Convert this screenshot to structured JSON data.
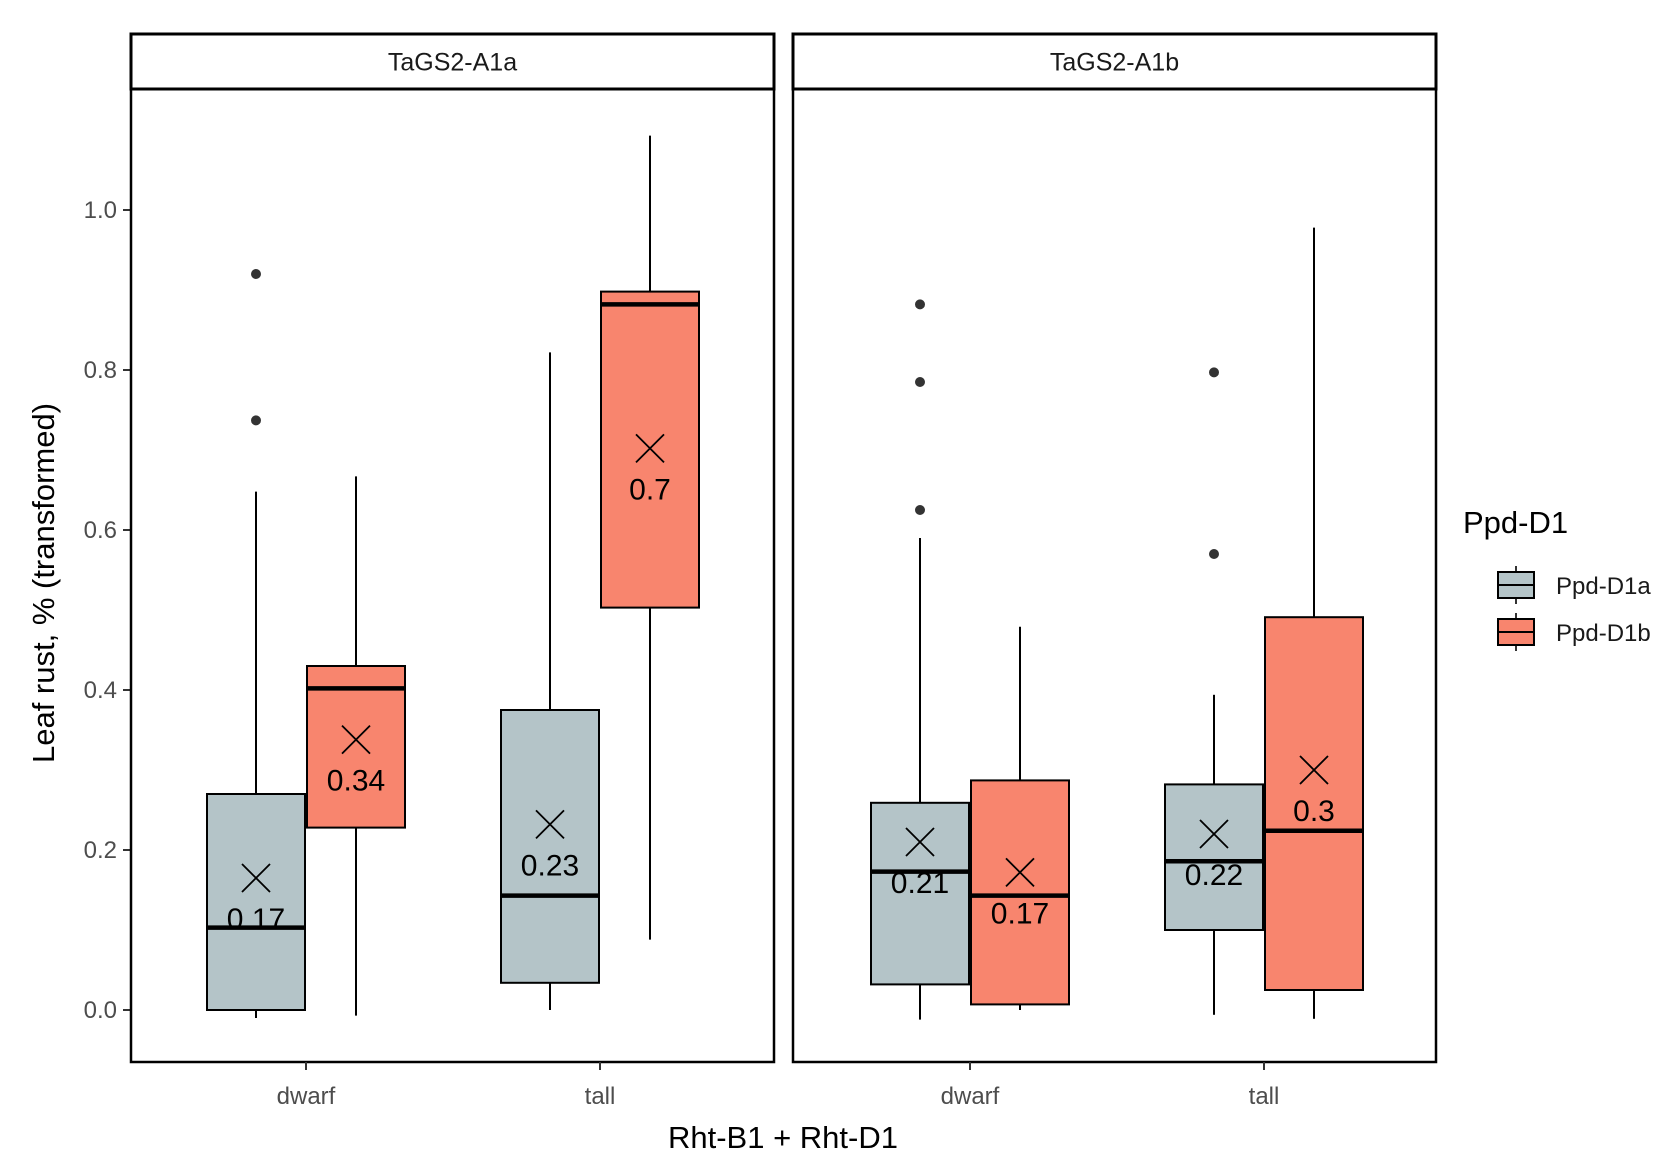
{
  "chart_data": {
    "type": "boxplot",
    "xlabel": "Rht-B1 + Rht-D1",
    "ylabel": "Leaf rust, % (transformed)",
    "ylim": [
      -0.07,
      1.15
    ],
    "yticks": [
      0.0,
      0.2,
      0.4,
      0.6,
      0.8,
      1.0
    ],
    "ytick_labels": [
      "0.0",
      "0.2",
      "0.4",
      "0.6",
      "0.8",
      "1.0"
    ],
    "categories": [
      "dwarf",
      "tall"
    ],
    "legend": {
      "title": "Ppd-D1",
      "position": "right",
      "items": [
        {
          "name": "Ppd-D1a",
          "color": "#b4c4c8"
        },
        {
          "name": "Ppd-D1b",
          "color": "#f8856e"
        }
      ]
    },
    "panels": [
      {
        "title": "TaGS2-A1a",
        "boxes": [
          {
            "category": "dwarf",
            "group": "Ppd-D1a",
            "whisker_low": -0.01,
            "q1": 0.0,
            "median": 0.103,
            "q3": 0.27,
            "whisker_high": 0.648,
            "outliers": [
              0.92,
              0.737
            ],
            "mean": 0.165,
            "mean_label": "0.17"
          },
          {
            "category": "dwarf",
            "group": "Ppd-D1b",
            "whisker_low": -0.007,
            "q1": 0.228,
            "median": 0.402,
            "q3": 0.43,
            "whisker_high": 0.667,
            "outliers": [],
            "mean": 0.338,
            "mean_label": "0.34"
          },
          {
            "category": "tall",
            "group": "Ppd-D1a",
            "whisker_low": 0.0,
            "q1": 0.034,
            "median": 0.143,
            "q3": 0.375,
            "whisker_high": 0.822,
            "outliers": [],
            "mean": 0.232,
            "mean_label": "0.23"
          },
          {
            "category": "tall",
            "group": "Ppd-D1b",
            "whisker_low": 0.088,
            "q1": 0.503,
            "median": 0.882,
            "q3": 0.898,
            "whisker_high": 1.093,
            "outliers": [],
            "mean": 0.702,
            "mean_label": "0.7"
          }
        ]
      },
      {
        "title": "TaGS2-A1b",
        "boxes": [
          {
            "category": "dwarf",
            "group": "Ppd-D1a",
            "whisker_low": -0.012,
            "q1": 0.032,
            "median": 0.173,
            "q3": 0.259,
            "whisker_high": 0.59,
            "outliers": [
              0.882,
              0.785,
              0.625
            ],
            "mean": 0.21,
            "mean_label": "0.21"
          },
          {
            "category": "dwarf",
            "group": "Ppd-D1b",
            "whisker_low": 0.0,
            "q1": 0.007,
            "median": 0.143,
            "q3": 0.287,
            "whisker_high": 0.479,
            "outliers": [],
            "mean": 0.172,
            "mean_label": "0.17"
          },
          {
            "category": "tall",
            "group": "Ppd-D1a",
            "whisker_low": -0.006,
            "q1": 0.1,
            "median": 0.186,
            "q3": 0.282,
            "whisker_high": 0.394,
            "outliers": [
              0.797,
              0.57
            ],
            "mean": 0.22,
            "mean_label": "0.22"
          },
          {
            "category": "tall",
            "group": "Ppd-D1b",
            "whisker_low": -0.011,
            "q1": 0.025,
            "median": 0.224,
            "q3": 0.491,
            "whisker_high": 0.978,
            "outliers": [],
            "mean": 0.3,
            "mean_label": "0.3"
          }
        ]
      }
    ]
  }
}
